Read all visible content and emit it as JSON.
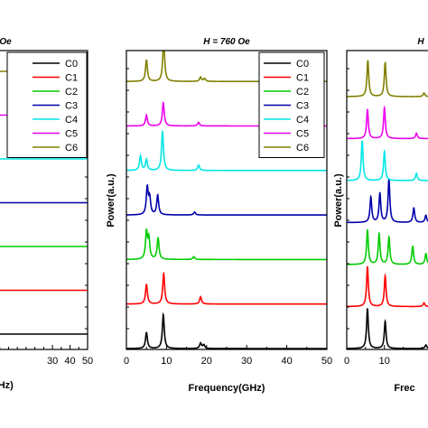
{
  "chart_data": [
    {
      "panel": "left",
      "type": "line",
      "title": "Oe",
      "xlabel": "r(GHz)",
      "ylabel": "",
      "xlim": [
        -5,
        50
      ],
      "xticks": [
        30,
        40,
        50
      ],
      "grid": false,
      "legend": "top-right",
      "series": [
        {
          "name": "C0",
          "color": "#000000",
          "peaks": [],
          "offset": 0
        },
        {
          "name": "C1",
          "color": "#ff0000",
          "peaks": [],
          "offset": 1
        },
        {
          "name": "C2",
          "color": "#00cc00",
          "peaks": [],
          "offset": 2
        },
        {
          "name": "C3",
          "color": "#0000aa",
          "peaks": [],
          "offset": 3
        },
        {
          "name": "C4",
          "color": "#00e5e5",
          "peaks": [],
          "offset": 4
        },
        {
          "name": "C5",
          "color": "#ee00ee",
          "peaks": [],
          "offset": 5
        },
        {
          "name": "C6",
          "color": "#808000",
          "peaks": [],
          "offset": 6
        }
      ]
    },
    {
      "panel": "middle",
      "type": "line",
      "title": "H = 760 Oe",
      "xlabel": "Frequency(GHz)",
      "ylabel": "Power(a.u.)",
      "xlim": [
        0,
        50
      ],
      "xticks": [
        0,
        10,
        20,
        30,
        40,
        50
      ],
      "grid": false,
      "legend": "top-right",
      "series": [
        {
          "name": "C0",
          "color": "#000000",
          "offset": 0,
          "peaks": [
            [
              5.0,
              0.45
            ],
            [
              9.2,
              0.95
            ],
            [
              18.5,
              0.15
            ],
            [
              19.3,
              0.1
            ]
          ]
        },
        {
          "name": "C1",
          "color": "#ff0000",
          "offset": 1,
          "peaks": [
            [
              5.0,
              0.55
            ],
            [
              9.3,
              0.85
            ],
            [
              18.5,
              0.2
            ]
          ]
        },
        {
          "name": "C2",
          "color": "#00cc00",
          "offset": 2,
          "peaks": [
            [
              5.0,
              0.75
            ],
            [
              5.6,
              0.55
            ],
            [
              7.9,
              0.6
            ],
            [
              16.8,
              0.08
            ]
          ]
        },
        {
          "name": "C3",
          "color": "#0000aa",
          "offset": 3,
          "peaks": [
            [
              5.2,
              0.75
            ],
            [
              5.8,
              0.45
            ],
            [
              7.8,
              0.55
            ],
            [
              17.0,
              0.08
            ]
          ]
        },
        {
          "name": "C4",
          "color": "#00e5e5",
          "offset": 4,
          "peaks": [
            [
              3.5,
              0.4
            ],
            [
              5.0,
              0.3
            ],
            [
              9.0,
              1.1
            ],
            [
              18.0,
              0.15
            ]
          ]
        },
        {
          "name": "C5",
          "color": "#ee00ee",
          "offset": 5,
          "peaks": [
            [
              5.0,
              0.3
            ],
            [
              9.2,
              0.65
            ],
            [
              18.0,
              0.1
            ]
          ]
        },
        {
          "name": "C6",
          "color": "#808000",
          "offset": 6,
          "peaks": [
            [
              5.0,
              0.6
            ],
            [
              9.3,
              1.15
            ],
            [
              18.5,
              0.12
            ],
            [
              19.5,
              0.08
            ]
          ]
        }
      ]
    },
    {
      "panel": "right",
      "type": "line",
      "title": "H",
      "xlabel": "Frec",
      "ylabel": "Power(a.u.)",
      "xlim": [
        0,
        23
      ],
      "xticks": [
        0,
        10
      ],
      "grid": false,
      "legend": "",
      "series": [
        {
          "name": "C0",
          "color": "#000000",
          "offset": 0,
          "peaks": [
            [
              5.5,
              1.1
            ],
            [
              10.2,
              0.75
            ],
            [
              21.0,
              0.1
            ]
          ]
        },
        {
          "name": "C1",
          "color": "#ff0000",
          "offset": 1,
          "peaks": [
            [
              5.5,
              1.1
            ],
            [
              10.2,
              0.85
            ],
            [
              20.5,
              0.1
            ]
          ]
        },
        {
          "name": "C2",
          "color": "#00cc00",
          "offset": 2,
          "peaks": [
            [
              5.5,
              0.95
            ],
            [
              8.6,
              0.85
            ],
            [
              11.2,
              0.75
            ],
            [
              17.5,
              0.5
            ],
            [
              21.0,
              0.3
            ]
          ]
        },
        {
          "name": "C3",
          "color": "#0000aa",
          "offset": 3,
          "peaks": [
            [
              6.4,
              0.7
            ],
            [
              8.8,
              0.8
            ],
            [
              11.2,
              1.2
            ],
            [
              17.8,
              0.4
            ],
            [
              21.0,
              0.2
            ]
          ]
        },
        {
          "name": "C4",
          "color": "#00e5e5",
          "offset": 4,
          "peaks": [
            [
              4.1,
              1.1
            ],
            [
              10.0,
              0.8
            ],
            [
              18.5,
              0.2
            ]
          ]
        },
        {
          "name": "C5",
          "color": "#ee00ee",
          "offset": 5,
          "peaks": [
            [
              5.5,
              0.8
            ],
            [
              10.0,
              0.85
            ],
            [
              18.5,
              0.15
            ]
          ]
        },
        {
          "name": "C6",
          "color": "#808000",
          "offset": 6,
          "peaks": [
            [
              5.6,
              1.0
            ],
            [
              10.2,
              0.95
            ],
            [
              20.5,
              0.1
            ]
          ]
        }
      ]
    }
  ]
}
